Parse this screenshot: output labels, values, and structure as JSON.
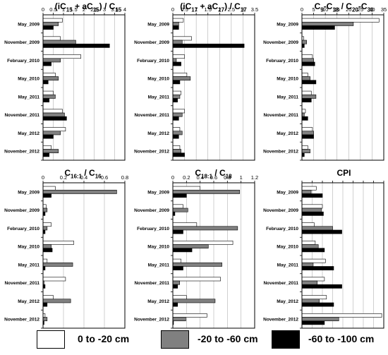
{
  "chart_data": [
    {
      "type": "bar",
      "orientation": "horizontal",
      "title": "(iC15 + aC15) / C15",
      "title_html": "(iC<sub>15</sub> + aC<sub>15</sub>) / C<sub>15</sub>",
      "categories": [
        "May_2009",
        "November_2009",
        "February_2010",
        "May_2010",
        "May_2011",
        "November_2011",
        "May_2012",
        "November_2012"
      ],
      "xlim": [
        0,
        4
      ],
      "xticks": [
        0,
        0.5,
        1,
        1.5,
        2,
        2.5,
        3,
        3.5,
        4
      ],
      "xtick_labels": [
        "0",
        "0.5",
        "1",
        "1.5",
        "2",
        "2.5",
        "3",
        "3.5",
        "4"
      ],
      "grid": true,
      "series": [
        {
          "name": "0 to -20 cm",
          "values": [
            0.95,
            0.85,
            1.85,
            0.6,
            0.5,
            0.95,
            1.1,
            0.4
          ]
        },
        {
          "name": "-20 to -60 cm",
          "values": [
            0.75,
            1.6,
            0.85,
            0.75,
            0.6,
            1.05,
            0.85,
            0.75
          ]
        },
        {
          "name": "-60 to -100 cm",
          "values": [
            0.5,
            3.25,
            0.4,
            0.25,
            0.3,
            1.15,
            0.5,
            0.3
          ]
        }
      ]
    },
    {
      "type": "bar",
      "orientation": "horizontal",
      "title": "(iC17 + aC17) / C17",
      "title_html": "(iC<sub>17</sub> + aC<sub>17</sub>) / C<sub>17</sub>",
      "categories": [
        "May_2009",
        "November_2009",
        "February_2010",
        "May_2010",
        "May_2011",
        "November_2011",
        "May_2012",
        "November_2012"
      ],
      "xlim": [
        0,
        3.5
      ],
      "xticks": [
        0,
        0.5,
        1,
        1.5,
        2,
        2.5,
        3,
        3.5
      ],
      "xtick_labels": [
        "0",
        "0.5",
        "1",
        "1.5",
        "2",
        "2.5",
        "3",
        "3.5"
      ],
      "grid": true,
      "series": [
        {
          "name": "0 to -20 cm",
          "values": [
            0.45,
            0.8,
            0.5,
            0.6,
            0.35,
            0.5,
            0.3,
            0.3
          ]
        },
        {
          "name": "-20 to -60 cm",
          "values": [
            0.25,
            0.4,
            0.15,
            0.75,
            0.3,
            0.4,
            0.4,
            0.35
          ]
        },
        {
          "name": "-60 to -100 cm",
          "values": [
            0.25,
            3.05,
            0.35,
            0.3,
            0.2,
            0.25,
            0.25,
            0.5
          ]
        }
      ]
    },
    {
      "type": "bar",
      "orientation": "horizontal",
      "title": "C9-C18 / C20-C30",
      "title_html": "C<sub>9</sub>-C<sub>18</sub> / C<sub>20</sub>-C<sub>30</sub>",
      "categories": [
        "May_2009",
        "November_2009",
        "February_2010",
        "May_2010",
        "May_2011",
        "November_2011",
        "May_2012",
        "November_2012"
      ],
      "xlim": [
        0,
        35
      ],
      "xticks": [
        0,
        5,
        10,
        15,
        20,
        25,
        30,
        35
      ],
      "xtick_labels": [
        "0",
        "5",
        "10",
        "15",
        "20",
        "25",
        "30",
        "35"
      ],
      "grid": true,
      "series": [
        {
          "name": "0 to -20 cm",
          "values": [
            33,
            0.8,
            4.5,
            2.5,
            4.0,
            1.5,
            4.5,
            2.5
          ]
        },
        {
          "name": "-20 to -60 cm",
          "values": [
            22,
            2.0,
            5.0,
            3.5,
            6.0,
            1.0,
            5.0,
            3.5
          ]
        },
        {
          "name": "-60 to -100 cm",
          "values": [
            14,
            1.0,
            5.5,
            6.0,
            4.0,
            2.5,
            5.0,
            1.0
          ]
        }
      ]
    },
    {
      "type": "bar",
      "orientation": "horizontal",
      "title": "C16:1 / C16",
      "title_html": "C<sub>16:1</sub> / C<sub>16</sub>",
      "categories": [
        "May_2009",
        "November_2009",
        "February_2010",
        "May_2010",
        "May_2011",
        "November_2011",
        "May_2012",
        "November_2012"
      ],
      "xlim": [
        0,
        0.8
      ],
      "xticks": [
        0,
        0.2,
        0.4,
        0.6,
        0.8
      ],
      "xtick_labels": [
        "0",
        "0.2",
        "0.4",
        "0.6",
        "0.8"
      ],
      "grid": true,
      "series": [
        {
          "name": "0 to -20 cm",
          "values": [
            0.12,
            0.03,
            0.08,
            0.3,
            0.04,
            0.22,
            0.1,
            0.02
          ]
        },
        {
          "name": "-20 to -60 cm",
          "values": [
            0.72,
            0.04,
            0.04,
            0.08,
            0.29,
            0.01,
            0.27,
            0.04
          ]
        },
        {
          "name": "-60 to -100 cm",
          "values": [
            0.08,
            0.02,
            0.02,
            0.09,
            0.02,
            0.02,
            0.04,
            0.01
          ]
        }
      ]
    },
    {
      "type": "bar",
      "orientation": "horizontal",
      "title": "C18:1 / C18",
      "title_html": "C<sub>18:1</sub> / C<sub>18</sub>",
      "categories": [
        "May_2009",
        "November_2009",
        "February_2010",
        "May_2010",
        "May_2011",
        "November_2011",
        "May_2012",
        "November_2012"
      ],
      "xlim": [
        0,
        1.2
      ],
      "xticks": [
        0,
        0.2,
        0.4,
        0.6,
        0.8,
        1,
        1.2
      ],
      "xtick_labels": [
        "0",
        "0.2",
        "0.4",
        "0.6",
        "0.8",
        "1",
        "1.2"
      ],
      "grid": true,
      "series": [
        {
          "name": "0 to -20 cm",
          "values": [
            0.4,
            0.15,
            0.35,
            0.88,
            0.12,
            0.7,
            0.2,
            0.5
          ]
        },
        {
          "name": "-20 to -60 cm",
          "values": [
            0.98,
            0.22,
            0.95,
            0.52,
            0.72,
            0.1,
            0.62,
            0.19
          ]
        },
        {
          "name": "-60 to -100 cm",
          "values": [
            0.2,
            0.03,
            0.15,
            0.28,
            0.15,
            0.07,
            0.07,
            0.01
          ]
        }
      ]
    },
    {
      "type": "bar",
      "orientation": "horizontal",
      "title": "CPI",
      "title_html": "CPI",
      "categories": [
        "May_2009",
        "November_2009",
        "February_2010",
        "May_2010",
        "May_2011",
        "November_2011",
        "May_2012",
        "November_2012"
      ],
      "xlim": [
        0,
        8
      ],
      "xticks": [
        0,
        1,
        2,
        3,
        4,
        5,
        6,
        7,
        8
      ],
      "xtick_labels": [
        "",
        "",
        "",
        "",
        "",
        "",
        "",
        "",
        ""
      ],
      "grid": true,
      "series": [
        {
          "name": "0 to -20 cm",
          "values": [
            1.4,
            2.0,
            1.2,
            1.3,
            2.3,
            2.2,
            2.4,
            7.8
          ]
        },
        {
          "name": "-20 to -60 cm",
          "values": [
            0.9,
            1.9,
            3.0,
            1.6,
            1.1,
            1.5,
            1.7,
            3.6
          ]
        },
        {
          "name": "-60 to -100 cm",
          "values": [
            2.0,
            2.1,
            3.9,
            2.2,
            3.1,
            3.9,
            3.1,
            2.2
          ]
        }
      ]
    }
  ],
  "legend": [
    {
      "label": "0 to -20 cm",
      "color": "#ffffff"
    },
    {
      "label": "-20 to -60 cm",
      "color": "#808080"
    },
    {
      "label": "-60 to -100 cm",
      "color": "#000000"
    }
  ]
}
